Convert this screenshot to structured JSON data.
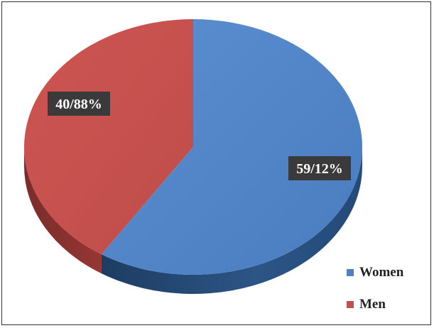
{
  "chart_data": {
    "type": "pie",
    "three_d": true,
    "slices": [
      {
        "name": "Women",
        "value": 59.12,
        "label": "59/12%",
        "color": "#4f81bd"
      },
      {
        "name": "Men",
        "value": 40.88,
        "label": "40/88%",
        "color": "#c0504d"
      }
    ],
    "start_angle": "top, clockwise",
    "legend_placement": "bottom-right",
    "label_style": "white bold text on dark boxes"
  }
}
